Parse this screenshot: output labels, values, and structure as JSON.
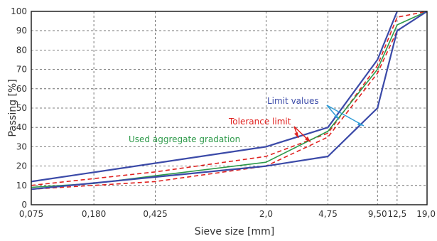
{
  "chart_data": {
    "type": "line",
    "xlabel": "Sieve size [mm]",
    "ylabel": "Passing [%]",
    "ylim": [
      0,
      100
    ],
    "y_ticks": [
      0,
      10,
      20,
      30,
      40,
      50,
      60,
      70,
      80,
      90,
      100
    ],
    "x_ticks": [
      "0,075",
      "0,180",
      "0,425",
      "2,0",
      "4,75",
      "9,50",
      "12,5",
      "19,0"
    ],
    "x_tick_values": [
      0.075,
      0.18,
      0.425,
      2.0,
      4.75,
      9.5,
      12.5,
      19.0
    ],
    "x_scale": "log",
    "grid": "dashed",
    "series": [
      {
        "key": "limit_upper",
        "color": "#3b4aa8",
        "dash": false,
        "x": [
          0.075,
          2.0,
          4.75,
          9.5,
          12.5
        ],
        "y": [
          12,
          30,
          40,
          75,
          100
        ]
      },
      {
        "key": "limit_lower",
        "color": "#3b4aa8",
        "dash": false,
        "x": [
          0.075,
          2.0,
          4.75,
          9.5,
          12.5,
          19.0
        ],
        "y": [
          8,
          20,
          25,
          50,
          90,
          100
        ]
      },
      {
        "key": "tolerance_upper",
        "color": "#e0211f",
        "dash": true,
        "x": [
          0.075,
          0.425,
          2.0,
          4.75,
          9.5,
          12.5,
          19.0
        ],
        "y": [
          10,
          17,
          25,
          37,
          72,
          97,
          100
        ]
      },
      {
        "key": "tolerance_lower",
        "color": "#e0211f",
        "dash": true,
        "x": [
          0.075,
          0.425,
          2.0,
          4.75,
          9.5,
          12.5,
          19.0
        ],
        "y": [
          8,
          12,
          20,
          35,
          68,
          90,
          100
        ]
      },
      {
        "key": "gradation",
        "color": "#2e9a4a",
        "dash": false,
        "x": [
          0.075,
          0.18,
          0.425,
          2.0,
          4.75,
          9.5,
          12.5,
          19.0
        ],
        "y": [
          9,
          11,
          15,
          22,
          38,
          70,
          93,
          100
        ]
      }
    ],
    "annotations": {
      "limit_values": {
        "text": "Limit values",
        "color": "#3b4aa8"
      },
      "tolerance_limit": {
        "text": "Tolerance limit",
        "color": "#e0211f"
      },
      "used_gradation": {
        "text": "Used aggregate gradation",
        "color": "#2e9a4a"
      }
    }
  }
}
